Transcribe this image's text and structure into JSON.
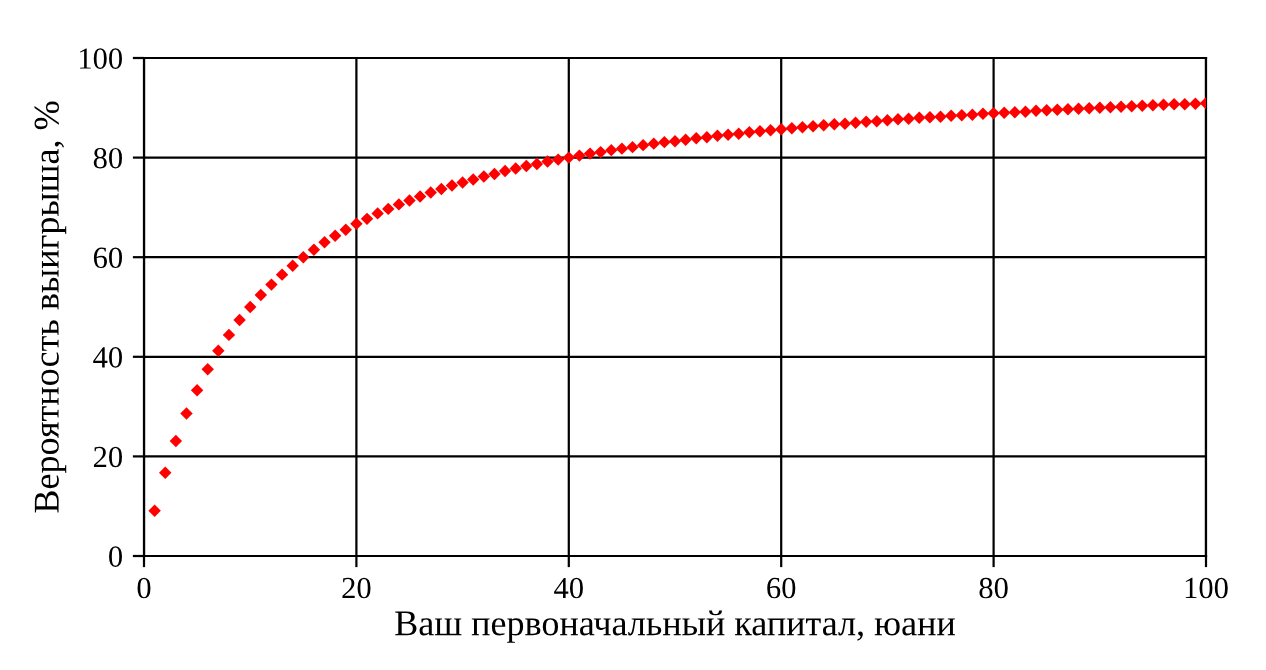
{
  "chart_data": {
    "type": "scatter",
    "xlabel": "Ваш первоначальный капитал, юани",
    "ylabel": "Вероятность выигрыша, %",
    "x": [
      1,
      2,
      3,
      4,
      5,
      6,
      7,
      8,
      9,
      10,
      11,
      12,
      13,
      14,
      15,
      16,
      17,
      18,
      19,
      20,
      21,
      22,
      23,
      24,
      25,
      26,
      27,
      28,
      29,
      30,
      31,
      32,
      33,
      34,
      35,
      36,
      37,
      38,
      39,
      40,
      41,
      42,
      43,
      44,
      45,
      46,
      47,
      48,
      49,
      50,
      51,
      52,
      53,
      54,
      55,
      56,
      57,
      58,
      59,
      60,
      61,
      62,
      63,
      64,
      65,
      66,
      67,
      68,
      69,
      70,
      71,
      72,
      73,
      74,
      75,
      76,
      77,
      78,
      79,
      80,
      81,
      82,
      83,
      84,
      85,
      86,
      87,
      88,
      89,
      90,
      91,
      92,
      93,
      94,
      95,
      96,
      97,
      98,
      99,
      100
    ],
    "series": [
      {
        "color": "#ff0000",
        "values": [
          9.1,
          16.7,
          23.1,
          28.6,
          33.3,
          37.5,
          41.2,
          44.4,
          47.4,
          50.0,
          52.4,
          54.5,
          56.5,
          58.3,
          60.0,
          61.5,
          63.0,
          64.3,
          65.5,
          66.7,
          67.7,
          68.8,
          69.7,
          70.6,
          71.4,
          72.2,
          73.0,
          73.7,
          74.4,
          75.0,
          75.6,
          76.2,
          76.7,
          77.3,
          77.8,
          78.3,
          78.7,
          79.2,
          79.6,
          80.0,
          80.4,
          80.8,
          81.1,
          81.5,
          81.8,
          82.1,
          82.5,
          82.8,
          83.1,
          83.3,
          83.6,
          83.9,
          84.1,
          84.4,
          84.6,
          84.8,
          85.1,
          85.3,
          85.5,
          85.7,
          85.9,
          86.1,
          86.3,
          86.5,
          86.7,
          86.8,
          87.0,
          87.2,
          87.3,
          87.5,
          87.7,
          87.8,
          88.0,
          88.1,
          88.2,
          88.4,
          88.5,
          88.6,
          88.8,
          88.9,
          89.0,
          89.1,
          89.2,
          89.4,
          89.5,
          89.6,
          89.7,
          89.8,
          89.9,
          90.0,
          90.1,
          90.2,
          90.3,
          90.4,
          90.5,
          90.6,
          90.7,
          90.7,
          90.8,
          90.9
        ]
      }
    ],
    "xlim": [
      0,
      100
    ],
    "xticks": [
      0,
      20,
      40,
      60,
      80,
      100
    ],
    "ylim": [
      0,
      100
    ],
    "yticks": [
      0,
      20,
      40,
      60,
      80,
      100
    ],
    "grid": true,
    "marker": "diamond",
    "legend": false
  }
}
